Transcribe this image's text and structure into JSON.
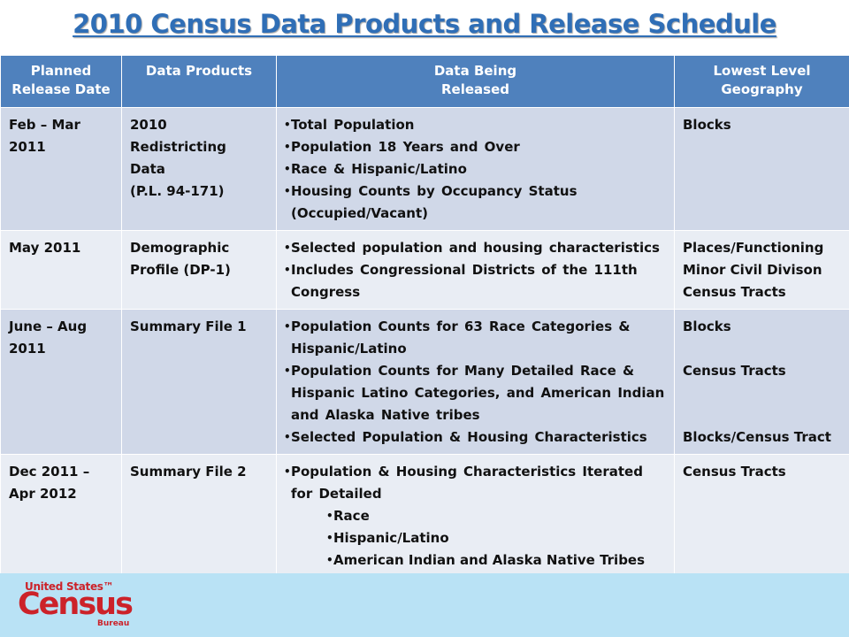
{
  "title": "2010 Census Data Products and Release Schedule",
  "colors": {
    "title": "#2f6eb6",
    "header_bg": "#4f81bd",
    "row_dark": "#d0d8e8",
    "row_light": "#e9edf4",
    "footer_bg": "#b9e2f5",
    "logo": "#cc2229"
  },
  "table": {
    "headers": {
      "date": [
        "Planned",
        "Release Date"
      ],
      "products": [
        "Data Products"
      ],
      "data": [
        "Data Being",
        "Released"
      ],
      "geography": [
        "Lowest Level",
        "Geography"
      ]
    },
    "rows": [
      {
        "date": [
          "Feb – Mar",
          "2011"
        ],
        "product": [
          "2010",
          "Redistricting",
          "Data",
          "(P.L. 94-171)"
        ],
        "items": [
          "Total Population",
          "Population 18 Years and Over",
          "Race & Hispanic/Latino",
          "Housing Counts by Occupancy Status (Occupied/Vacant)"
        ],
        "geography": [
          "Blocks"
        ]
      },
      {
        "date": [
          "May 2011"
        ],
        "product": [
          "Demographic",
          "Profile (DP-1)"
        ],
        "items": [
          "Selected population and housing characteristics",
          "Includes Congressional Districts of the 111th Congress"
        ],
        "geography": [
          "Places/Functioning",
          "Minor Civil Divison",
          "Census Tracts"
        ]
      },
      {
        "date": [
          "June – Aug",
          "2011"
        ],
        "product": [
          "Summary File 1"
        ],
        "items": [
          "Population Counts for 63 Race Categories & Hispanic/Latino",
          "Population Counts for Many Detailed Race & Hispanic Latino Categories, and American Indian and Alaska Native tribes",
          "Selected Population & Housing Characteristics"
        ],
        "geography": [
          "Blocks",
          "Census Tracts",
          "Blocks/Census Tract"
        ]
      },
      {
        "date": [
          "Dec 2011 –",
          "Apr 2012"
        ],
        "product": [
          "Summary File 2"
        ],
        "items": [
          "Population & Housing Characteristics Iterated for Detailed"
        ],
        "subitems": [
          "Race",
          "Hispanic/Latino",
          "American Indian and Alaska Native Tribes"
        ],
        "geography": [
          "Census Tracts"
        ]
      }
    ]
  },
  "logo": {
    "line1": "United States™",
    "line2": "Census",
    "line3": "Bureau"
  }
}
